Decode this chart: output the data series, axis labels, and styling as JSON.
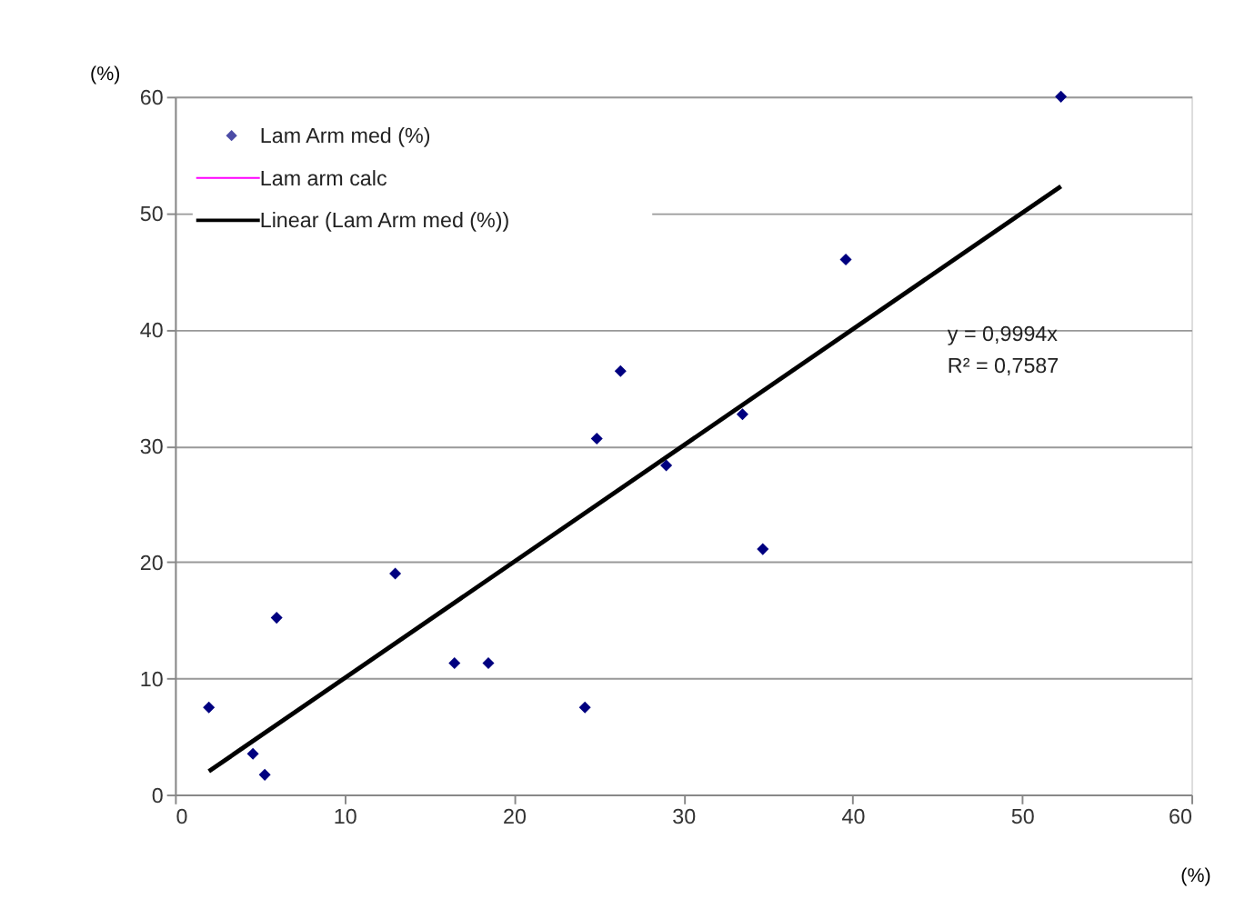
{
  "chart_data": {
    "type": "scatter",
    "xlabel": "(%)",
    "ylabel": "(%)",
    "xlim": [
      0,
      60
    ],
    "ylim": [
      0,
      60
    ],
    "xticks": [
      0,
      10,
      20,
      30,
      40,
      50,
      60
    ],
    "yticks": [
      0,
      10,
      20,
      30,
      40,
      50,
      60
    ],
    "grid": "y",
    "legend": "top left",
    "series": [
      {
        "name": "Lam Arm med (%)",
        "marker": "diamond",
        "color": "#000080",
        "x": [
          2,
          4.6,
          5.3,
          6,
          13,
          16.5,
          18.5,
          24.2,
          24.9,
          26.3,
          29,
          33.5,
          34.7,
          39.6,
          52.3
        ],
        "values": [
          7.5,
          3.5,
          1.7,
          15.2,
          19,
          11.3,
          11.3,
          7.5,
          30.6,
          36.4,
          28.3,
          32.7,
          21.1,
          46,
          60
        ]
      },
      {
        "name": "Lam arm calc",
        "type": "line",
        "color": "#ff00ff"
      },
      {
        "name": "Linear (Lam Arm med (%))",
        "type": "line",
        "line_style": "solid",
        "color": "#000000",
        "x": [
          2,
          52.3
        ],
        "values": [
          2.0,
          52.3
        ]
      }
    ],
    "annotations": [
      "y = 0,9994x",
      "R² = 0,7587"
    ]
  }
}
